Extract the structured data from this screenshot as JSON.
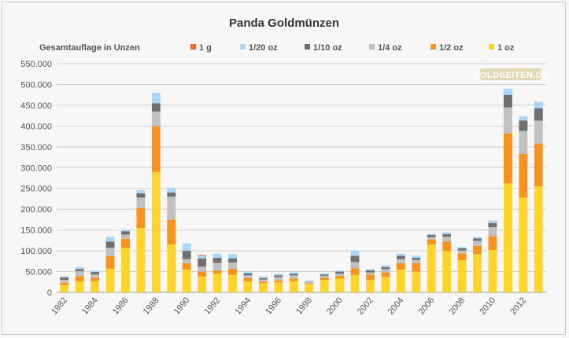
{
  "chart_data": {
    "type": "bar",
    "stacked": true,
    "title": "Panda Goldmünzen",
    "ylabel": "Gesamtauflage in Unzen",
    "watermark": "GOLDSEITEN.DE",
    "ylim": [
      0,
      550000
    ],
    "yticks": [
      "0",
      "50.000",
      "100.000",
      "150.000",
      "200.000",
      "250.000",
      "300.000",
      "350.000",
      "400.000",
      "450.000",
      "500.000",
      "550.000"
    ],
    "xtick_labels": [
      "1982",
      "1984",
      "1986",
      "1988",
      "1990",
      "1992",
      "1994",
      "1996",
      "1998",
      "2000",
      "2002",
      "2004",
      "2006",
      "2008",
      "2010",
      "2012"
    ],
    "legend_position": "top",
    "grid": true,
    "categories": [
      "1982",
      "1983",
      "1984",
      "1985",
      "1986",
      "1987",
      "1988",
      "1989",
      "1990",
      "1991",
      "1992",
      "1993",
      "1994",
      "1995",
      "1996",
      "1997",
      "1998",
      "1999",
      "2000",
      "2001",
      "2002",
      "2003",
      "2004",
      "2005",
      "2006",
      "2007",
      "2008",
      "2009",
      "2010",
      "2011",
      "2012",
      "2013"
    ],
    "series": [
      {
        "name": "1 oz",
        "color": "#ffd52a",
        "values": [
          18000,
          27000,
          27000,
          57000,
          107000,
          155000,
          290000,
          115000,
          55000,
          38000,
          45000,
          42000,
          26000,
          22000,
          24000,
          27000,
          20000,
          30000,
          33000,
          42000,
          30000,
          37000,
          55000,
          50000,
          115000,
          100000,
          77000,
          92000,
          102000,
          262000,
          228000,
          255000
        ]
      },
      {
        "name": "1/2 oz",
        "color": "#f7931e",
        "values": [
          5000,
          12000,
          8000,
          30000,
          22000,
          48000,
          110000,
          60000,
          15000,
          12000,
          8000,
          15000,
          8000,
          4000,
          5000,
          6000,
          2000,
          5000,
          7000,
          16000,
          13000,
          11000,
          15000,
          20000,
          13000,
          22000,
          17000,
          20000,
          33000,
          120000,
          105000,
          103000
        ]
      },
      {
        "name": "1/4 oz",
        "color": "#c1c1c1",
        "values": [
          7000,
          12000,
          8000,
          20000,
          10000,
          25000,
          35000,
          55000,
          10000,
          12000,
          18000,
          15000,
          7000,
          5000,
          8000,
          8000,
          3000,
          5000,
          5000,
          15000,
          5000,
          8000,
          10000,
          8000,
          5000,
          12000,
          7000,
          12000,
          22000,
          63000,
          55000,
          55000
        ]
      },
      {
        "name": "1/10 oz",
        "color": "#6f6f6f",
        "values": [
          6000,
          5000,
          6000,
          15000,
          8000,
          10000,
          20000,
          10000,
          20000,
          20000,
          12000,
          10000,
          5000,
          3000,
          4000,
          4000,
          1000,
          3000,
          5000,
          15000,
          5000,
          5000,
          8000,
          5000,
          5000,
          6000,
          5000,
          6000,
          10000,
          30000,
          25000,
          30000
        ]
      },
      {
        "name": "1/20 oz",
        "color": "#a9d6fb",
        "values": [
          3000,
          5000,
          4000,
          12000,
          4000,
          8000,
          25000,
          12000,
          18000,
          6000,
          10000,
          10000,
          3000,
          4000,
          4000,
          3000,
          2000,
          3000,
          2000,
          12000,
          3000,
          4000,
          5000,
          5000,
          3000,
          5000,
          3000,
          3000,
          6000,
          15000,
          10000,
          15000
        ]
      },
      {
        "name": "1 g",
        "color": "#e8683a",
        "values": [
          0,
          0,
          0,
          0,
          0,
          0,
          0,
          0,
          0,
          2000,
          0,
          0,
          0,
          0,
          0,
          0,
          0,
          0,
          0,
          0,
          0,
          0,
          0,
          0,
          0,
          0,
          0,
          0,
          0,
          0,
          0,
          0
        ]
      }
    ],
    "legend_order": [
      "1 g",
      "1/20 oz",
      "1/10 oz",
      "1/4 oz",
      "1/2 oz",
      "1 oz"
    ]
  }
}
